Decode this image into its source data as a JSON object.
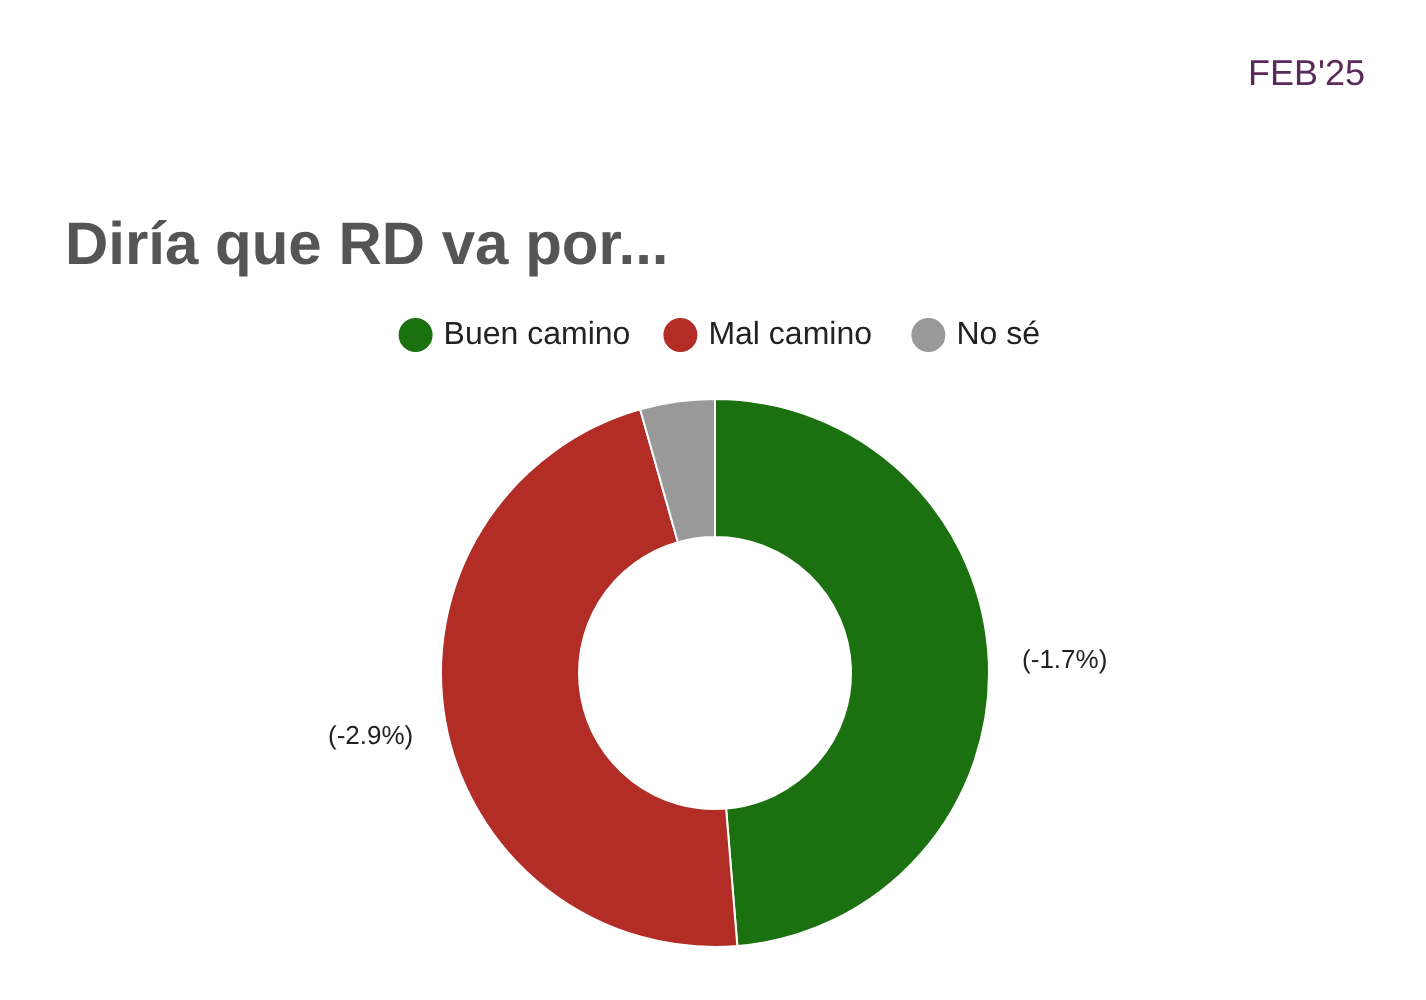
{
  "chart_data": {
    "type": "donut",
    "title": "Diría que RD va por...",
    "categories": [
      "Buen camino",
      "Mal camino",
      "No sé"
    ],
    "values": [
      48.7,
      46.9,
      4.4
    ],
    "colors": [
      "#1b7010",
      "#b12d26",
      "#999999"
    ],
    "legend": "top",
    "annotations": [
      "FEB'25",
      "(-1.7%)",
      "(-2.9%)"
    ]
  }
}
